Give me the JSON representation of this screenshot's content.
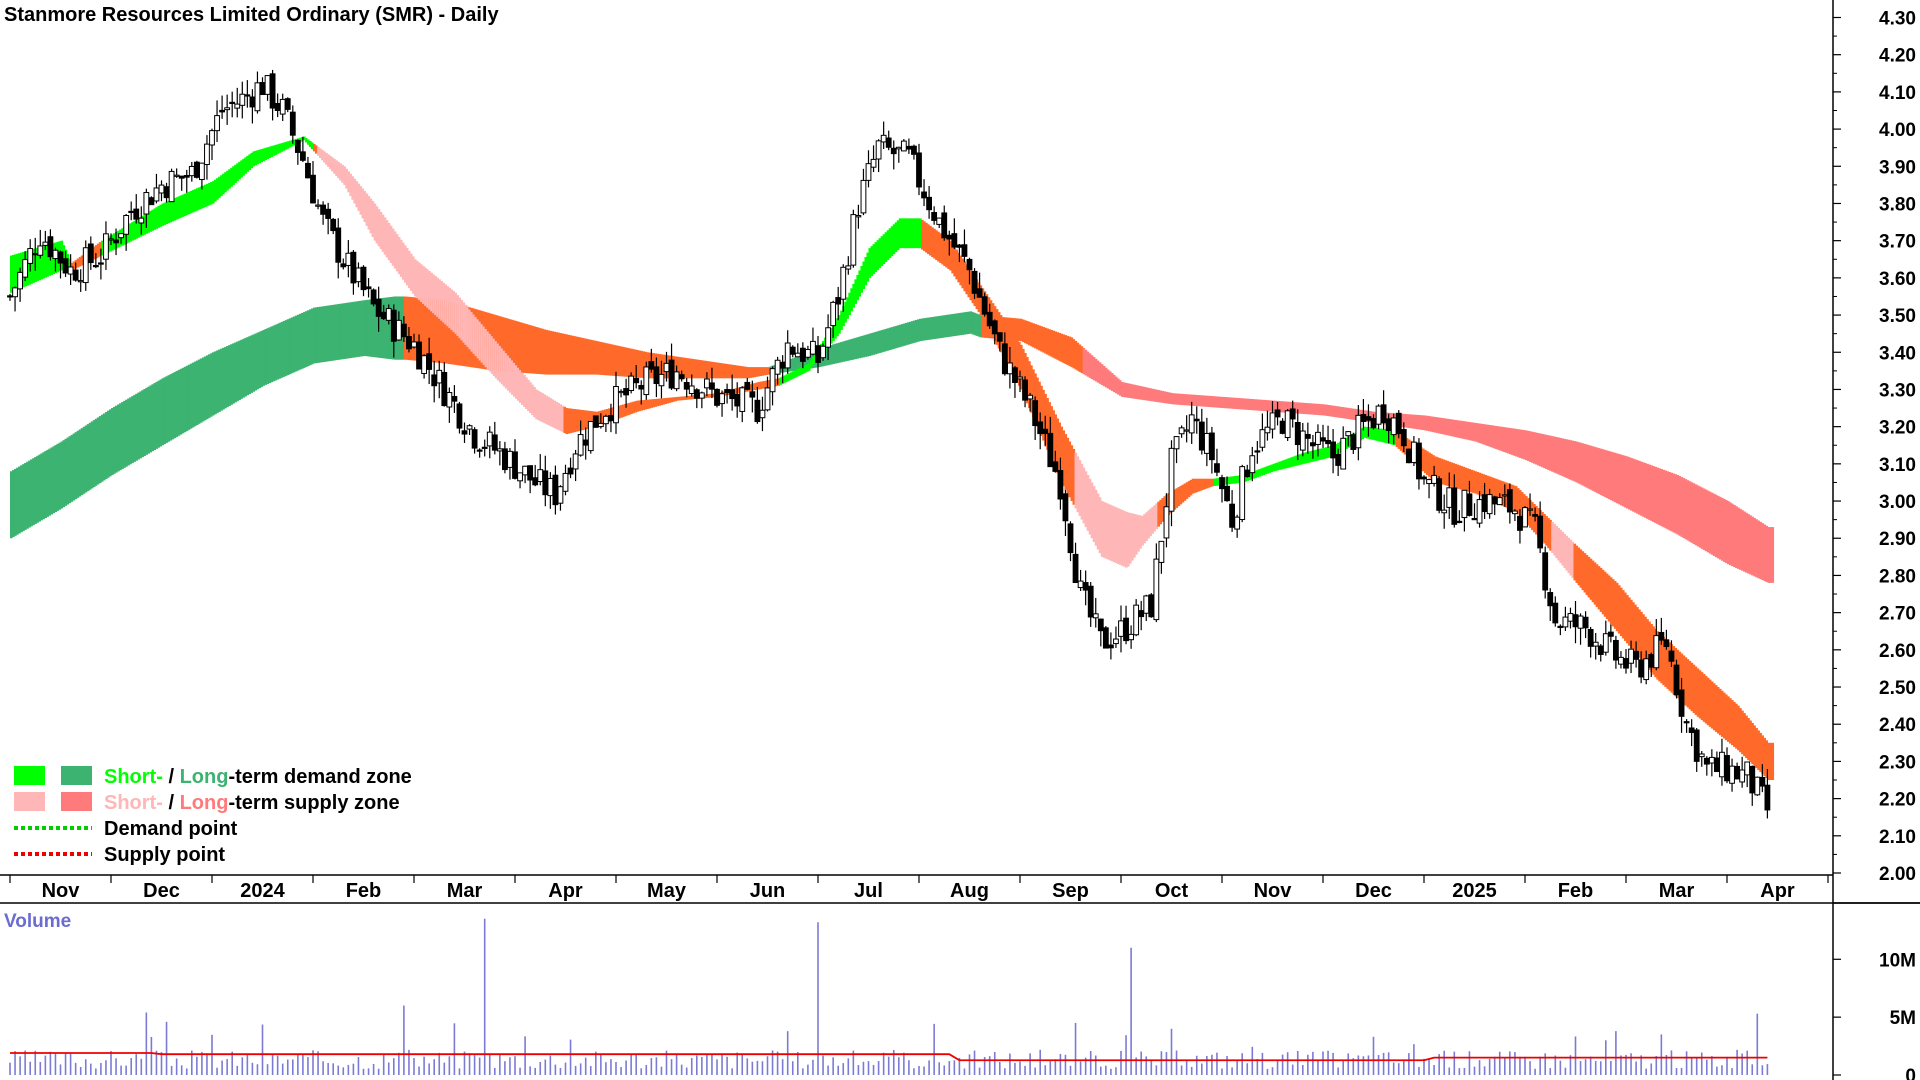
{
  "chart_data": {
    "type": "candlestick",
    "title": "Stanmore Resources Limited Ordinary (SMR) - Daily",
    "price_axis": {
      "ylim": [
        2.0,
        4.3
      ],
      "ticks": [
        "4.30",
        "4.20",
        "4.10",
        "4.00",
        "3.90",
        "3.80",
        "3.70",
        "3.60",
        "3.50",
        "3.40",
        "3.30",
        "3.20",
        "3.10",
        "3.00",
        "2.90",
        "2.80",
        "2.70",
        "2.60",
        "2.50",
        "2.40",
        "2.30",
        "2.20",
        "2.10",
        "2.00"
      ]
    },
    "x_axis": {
      "labels": [
        "Nov",
        "Dec",
        "2024",
        "Feb",
        "Mar",
        "Apr",
        "May",
        "Jun",
        "Jul",
        "Aug",
        "Sep",
        "Oct",
        "Nov",
        "Dec",
        "2025",
        "Feb",
        "Mar",
        "Apr"
      ],
      "bold_labels": [
        "2024",
        "2025"
      ],
      "label_pos": [
        0.5,
        1.5,
        2.5,
        3.5,
        4.5,
        5.5,
        6.5,
        7.5,
        8.5,
        9.5,
        10.5,
        11.5,
        12.5,
        13.5,
        14.5,
        15.5,
        16.5,
        17.5
      ]
    },
    "price_key": [
      [
        0,
        3.55
      ],
      [
        0.3,
        3.72
      ],
      [
        0.6,
        3.62
      ],
      [
        0.9,
        3.66
      ],
      [
        1.2,
        3.78
      ],
      [
        1.5,
        3.85
      ],
      [
        1.8,
        3.88
      ],
      [
        2.1,
        4.05
      ],
      [
        2.3,
        4.08
      ],
      [
        2.5,
        4.12
      ],
      [
        2.7,
        4.05
      ],
      [
        2.9,
        3.92
      ],
      [
        3.1,
        3.75
      ],
      [
        3.3,
        3.65
      ],
      [
        3.6,
        3.52
      ],
      [
        4.0,
        3.42
      ],
      [
        4.3,
        3.3
      ],
      [
        4.6,
        3.18
      ],
      [
        4.9,
        3.12
      ],
      [
        5.2,
        3.05
      ],
      [
        5.4,
        3.02
      ],
      [
        5.6,
        3.15
      ],
      [
        5.9,
        3.25
      ],
      [
        6.3,
        3.32
      ],
      [
        6.6,
        3.35
      ],
      [
        7.0,
        3.28
      ],
      [
        7.4,
        3.25
      ],
      [
        7.7,
        3.42
      ],
      [
        8.0,
        3.38
      ],
      [
        8.2,
        3.55
      ],
      [
        8.4,
        3.8
      ],
      [
        8.6,
        3.95
      ],
      [
        8.9,
        3.92
      ],
      [
        9.2,
        3.75
      ],
      [
        9.5,
        3.62
      ],
      [
        9.8,
        3.4
      ],
      [
        10.1,
        3.25
      ],
      [
        10.4,
        3.05
      ],
      [
        10.6,
        2.75
      ],
      [
        10.8,
        2.62
      ],
      [
        11.0,
        2.65
      ],
      [
        11.3,
        2.72
      ],
      [
        11.5,
        3.1
      ],
      [
        11.7,
        3.22
      ],
      [
        11.9,
        3.12
      ],
      [
        12.1,
        2.95
      ],
      [
        12.3,
        3.15
      ],
      [
        12.6,
        3.22
      ],
      [
        12.9,
        3.15
      ],
      [
        13.1,
        3.12
      ],
      [
        13.4,
        3.2
      ],
      [
        13.6,
        3.25
      ],
      [
        13.8,
        3.18
      ],
      [
        14.0,
        3.05
      ],
      [
        14.3,
        2.98
      ],
      [
        14.6,
        3.0
      ],
      [
        14.9,
        2.98
      ],
      [
        15.1,
        2.92
      ],
      [
        15.3,
        2.68
      ],
      [
        15.6,
        2.66
      ],
      [
        15.9,
        2.58
      ],
      [
        16.1,
        2.55
      ],
      [
        16.4,
        2.62
      ],
      [
        16.6,
        2.4
      ],
      [
        16.8,
        2.28
      ],
      [
        17.0,
        2.28
      ],
      [
        17.2,
        2.26
      ],
      [
        17.4,
        2.17
      ],
      [
        17.5,
        2.07
      ]
    ],
    "short_zone_key": [
      [
        0,
        3.56,
        3.66,
        "d"
      ],
      [
        0.5,
        3.62,
        3.7,
        "d"
      ],
      [
        0.6,
        3.62,
        3.64,
        "s"
      ],
      [
        0.9,
        3.66,
        3.7,
        "d"
      ],
      [
        1.5,
        3.74,
        3.8,
        "d"
      ],
      [
        2.0,
        3.8,
        3.86,
        "d"
      ],
      [
        2.4,
        3.9,
        3.94,
        "d"
      ],
      [
        2.9,
        3.97,
        3.98,
        "d"
      ],
      [
        3.0,
        3.94,
        3.96,
        "s"
      ],
      [
        3.3,
        3.85,
        3.9,
        "s"
      ],
      [
        3.6,
        3.7,
        3.8,
        "s"
      ],
      [
        4.0,
        3.55,
        3.65,
        "s"
      ],
      [
        4.4,
        3.45,
        3.56,
        "s"
      ],
      [
        4.8,
        3.33,
        3.43,
        "s"
      ],
      [
        5.2,
        3.22,
        3.3,
        "s"
      ],
      [
        5.5,
        3.18,
        3.25,
        "s"
      ],
      [
        5.8,
        3.2,
        3.24,
        "s"
      ],
      [
        6.2,
        3.24,
        3.27,
        "s"
      ],
      [
        6.6,
        3.27,
        3.28,
        "s"
      ],
      [
        7.0,
        3.28,
        3.29,
        "s"
      ],
      [
        7.4,
        3.3,
        3.32,
        "s"
      ],
      [
        7.6,
        3.31,
        3.33,
        "d"
      ],
      [
        7.9,
        3.35,
        3.37,
        "d"
      ],
      [
        8.2,
        3.45,
        3.5,
        "d"
      ],
      [
        8.5,
        3.6,
        3.68,
        "d"
      ],
      [
        8.8,
        3.68,
        3.76,
        "d"
      ],
      [
        9.0,
        3.68,
        3.76,
        "s"
      ],
      [
        9.3,
        3.62,
        3.7,
        "s"
      ],
      [
        9.6,
        3.5,
        3.58,
        "s"
      ],
      [
        10.0,
        3.3,
        3.42,
        "s"
      ],
      [
        10.4,
        3.05,
        3.2,
        "s"
      ],
      [
        10.8,
        2.85,
        3.0,
        "s"
      ],
      [
        11.05,
        2.82,
        2.97,
        "s"
      ],
      [
        11.2,
        2.88,
        2.96,
        "s"
      ],
      [
        11.45,
        2.96,
        3.02,
        "s"
      ],
      [
        11.7,
        3.02,
        3.06,
        "s"
      ],
      [
        11.9,
        3.04,
        3.06,
        "d"
      ],
      [
        12.2,
        3.05,
        3.07,
        "d"
      ],
      [
        12.5,
        3.08,
        3.1,
        "d"
      ],
      [
        12.8,
        3.1,
        3.13,
        "d"
      ],
      [
        13.1,
        3.12,
        3.15,
        "d"
      ],
      [
        13.4,
        3.17,
        3.2,
        "d"
      ],
      [
        13.7,
        3.15,
        3.19,
        "s"
      ],
      [
        14.1,
        3.05,
        3.12,
        "s"
      ],
      [
        14.5,
        3.02,
        3.08,
        "s"
      ],
      [
        14.9,
        2.97,
        3.04,
        "s"
      ],
      [
        15.2,
        2.88,
        2.96,
        "s"
      ],
      [
        15.5,
        2.78,
        2.88,
        "s"
      ],
      [
        15.9,
        2.65,
        2.78,
        "s"
      ],
      [
        16.3,
        2.52,
        2.65,
        "s"
      ],
      [
        16.7,
        2.42,
        2.55,
        "s"
      ],
      [
        17.1,
        2.33,
        2.45,
        "s"
      ],
      [
        17.4,
        2.25,
        2.35,
        "s"
      ]
    ],
    "long_zone_key": [
      [
        0,
        2.9,
        3.08,
        "d"
      ],
      [
        0.5,
        2.98,
        3.16,
        "d"
      ],
      [
        1.0,
        3.07,
        3.25,
        "d"
      ],
      [
        1.5,
        3.15,
        3.33,
        "d"
      ],
      [
        2.0,
        3.23,
        3.4,
        "d"
      ],
      [
        2.5,
        3.31,
        3.46,
        "d"
      ],
      [
        3.0,
        3.37,
        3.52,
        "d"
      ],
      [
        3.5,
        3.39,
        3.54,
        "d"
      ],
      [
        3.8,
        3.38,
        3.55,
        "d"
      ],
      [
        3.9,
        3.38,
        3.55,
        "s"
      ],
      [
        4.3,
        3.37,
        3.54,
        "s"
      ],
      [
        4.8,
        3.35,
        3.5,
        "s"
      ],
      [
        5.3,
        3.34,
        3.46,
        "s"
      ],
      [
        5.8,
        3.34,
        3.43,
        "s"
      ],
      [
        6.3,
        3.33,
        3.4,
        "s"
      ],
      [
        6.8,
        3.33,
        3.38,
        "s"
      ],
      [
        7.3,
        3.33,
        3.36,
        "s"
      ],
      [
        7.5,
        3.34,
        3.36,
        "d"
      ],
      [
        8.0,
        3.36,
        3.41,
        "d"
      ],
      [
        8.5,
        3.39,
        3.45,
        "d"
      ],
      [
        9.0,
        3.43,
        3.49,
        "d"
      ],
      [
        9.5,
        3.45,
        3.51,
        "d"
      ],
      [
        9.6,
        3.44,
        3.5,
        "s"
      ],
      [
        10.0,
        3.43,
        3.49,
        "s"
      ],
      [
        10.5,
        3.36,
        3.44,
        "s"
      ],
      [
        11.0,
        3.28,
        3.32,
        "s"
      ],
      [
        11.5,
        3.26,
        3.29,
        "s"
      ],
      [
        12.0,
        3.25,
        3.28,
        "s"
      ],
      [
        12.5,
        3.24,
        3.27,
        "s"
      ],
      [
        13.0,
        3.23,
        3.26,
        "s"
      ],
      [
        13.5,
        3.21,
        3.24,
        "s"
      ],
      [
        14.0,
        3.19,
        3.23,
        "s"
      ],
      [
        14.5,
        3.16,
        3.21,
        "s"
      ],
      [
        15.0,
        3.11,
        3.19,
        "s"
      ],
      [
        15.5,
        3.05,
        3.16,
        "s"
      ],
      [
        16.0,
        2.98,
        3.12,
        "s"
      ],
      [
        16.5,
        2.91,
        3.07,
        "s"
      ],
      [
        17.0,
        2.83,
        3.0,
        "s"
      ],
      [
        17.4,
        2.78,
        2.93,
        "s"
      ]
    ],
    "volume": {
      "label": "Volume",
      "ticks": [
        "10M",
        "5M",
        "0"
      ],
      "ylim": [
        0,
        14000000
      ],
      "baseline": 1500000,
      "spikes": [
        [
          1.35,
          5400000
        ],
        [
          3.9,
          6000000
        ],
        [
          4.7,
          13500000
        ],
        [
          8.0,
          6000000
        ],
        [
          11.1,
          5000000
        ],
        [
          13.5,
          3300000
        ],
        [
          15.8,
          3000000
        ],
        [
          17.3,
          5300000
        ]
      ]
    },
    "legend": {
      "placement": "bottom-left",
      "row1": {
        "short": "Short-",
        "sep": " / ",
        "long": "Long",
        "rest": "-term demand zone"
      },
      "row2": {
        "short": "Short-",
        "sep": " / ",
        "long": "Long",
        "rest": "-term supply zone"
      },
      "row3": "Demand point",
      "row4": "Supply point"
    },
    "colors": {
      "short_demand": "#00ff00",
      "long_demand": "#3cb371",
      "short_supply": "#ffb6b6",
      "long_supply_short_overlap": "#ff6a2a",
      "long_supply": "#ff7a7a",
      "demand_point": "#00cc00",
      "supply_point": "#ee0000",
      "candle": "#000000",
      "volume_bar": "#7b7bd6",
      "volume_avg": "#ee0000",
      "volume_label": "#6b6bd0"
    }
  }
}
